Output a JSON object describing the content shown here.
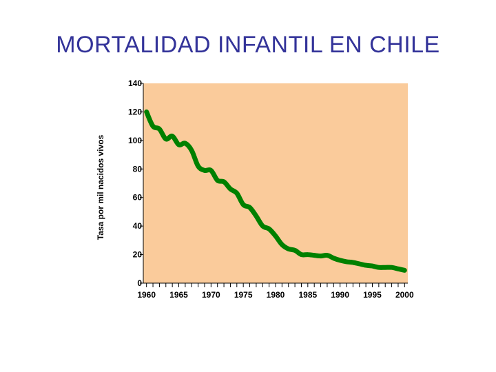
{
  "title": "MORTALIDAD INFANTIL EN CHILE",
  "colors": {
    "title": "#333399",
    "plot_bg": "#FACB9B",
    "line": "#008000",
    "axis": "#000000"
  },
  "chart_data": {
    "type": "line",
    "title": "MORTALIDAD INFANTIL EN CHILE",
    "xlabel": "",
    "ylabel": "Tasa por mil nacidos vivos",
    "xlim": [
      1959.5,
      2000.5
    ],
    "ylim": [
      0,
      140
    ],
    "x_ticks": [
      "1960",
      "1965",
      "1970",
      "1975",
      "1980",
      "1985",
      "1990",
      "1995",
      "2000"
    ],
    "y_ticks": [
      "0",
      "20",
      "40",
      "60",
      "80",
      "100",
      "120",
      "140"
    ],
    "grid": false,
    "legend": "none",
    "series": [
      {
        "x": [
          1960,
          1961,
          1962,
          1963,
          1964,
          1965,
          1966,
          1967,
          1968,
          1969,
          1970,
          1971,
          1972,
          1973,
          1974,
          1975,
          1976,
          1977,
          1978,
          1979,
          1980,
          1981,
          1982,
          1983,
          1984,
          1985,
          1986,
          1987,
          1988,
          1989,
          1990,
          1991,
          1992,
          1993,
          1994,
          1995,
          1996,
          1997,
          1998,
          1999,
          2000
        ],
        "values": [
          120,
          110,
          108,
          101,
          103,
          97,
          98,
          93,
          82,
          79,
          79,
          72,
          71,
          66,
          63,
          55,
          53,
          47,
          40,
          38,
          33,
          27,
          24,
          23,
          20,
          20,
          19.5,
          19,
          19.5,
          17.5,
          16,
          15,
          14.5,
          13.5,
          12.5,
          12,
          11,
          11,
          11,
          10,
          9
        ]
      }
    ]
  }
}
